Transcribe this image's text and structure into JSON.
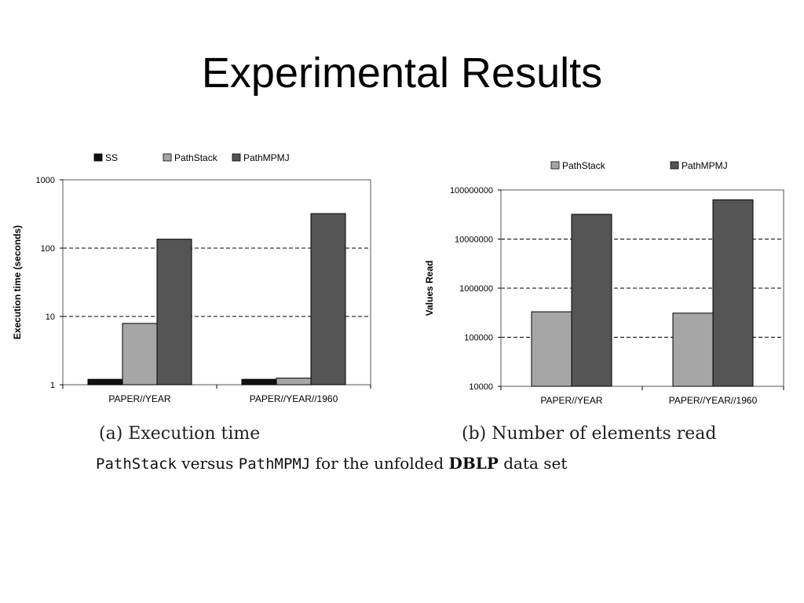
{
  "slide": {
    "title": "Experimental Results"
  },
  "captions": {
    "a": "(a) Execution time",
    "b": "(b) Number of elements read",
    "figure_code1": "PathStack",
    "figure_text1": " versus ",
    "figure_code2": "PathMPMJ",
    "figure_text2": " for the unfolded ",
    "figure_bold": "DBLP",
    "figure_text3": " data set"
  },
  "colors": {
    "SS": "#111111",
    "PathStack": "#a6a6a6",
    "PathMPMJ": "#555555"
  },
  "chart_data": [
    {
      "type": "bar",
      "title": "",
      "xlabel": "",
      "ylabel": "Execution time (seconds)",
      "yscale": "log",
      "ylim": [
        1,
        1000
      ],
      "yticks": [
        1,
        10,
        100,
        1000
      ],
      "ytick_labels": [
        "1",
        "10",
        "100",
        "1000"
      ],
      "grid": "dashed horizontal",
      "legend": "top",
      "categories": [
        "PAPER//YEAR",
        "PAPER//YEAR//1960"
      ],
      "series": [
        {
          "name": "SS",
          "values": [
            1.2,
            1.2
          ]
        },
        {
          "name": "PathStack",
          "values": [
            7.9,
            1.25
          ]
        },
        {
          "name": "PathMPMJ",
          "values": [
            135,
            320
          ]
        }
      ]
    },
    {
      "type": "bar",
      "title": "",
      "xlabel": "",
      "ylabel": "Values Read",
      "yscale": "log",
      "ylim": [
        10000,
        100000000
      ],
      "yticks": [
        10000,
        100000,
        1000000,
        10000000,
        100000000
      ],
      "ytick_labels": [
        "10000",
        "100000",
        "1000000",
        "10000000",
        "100000000"
      ],
      "grid": "dashed horizontal",
      "legend": "top",
      "categories": [
        "PAPER//YEAR",
        "PAPER//YEAR//1960"
      ],
      "series": [
        {
          "name": "PathStack",
          "values": [
            330000,
            310000
          ]
        },
        {
          "name": "PathMPMJ",
          "values": [
            32000000,
            63000000
          ]
        }
      ]
    }
  ]
}
